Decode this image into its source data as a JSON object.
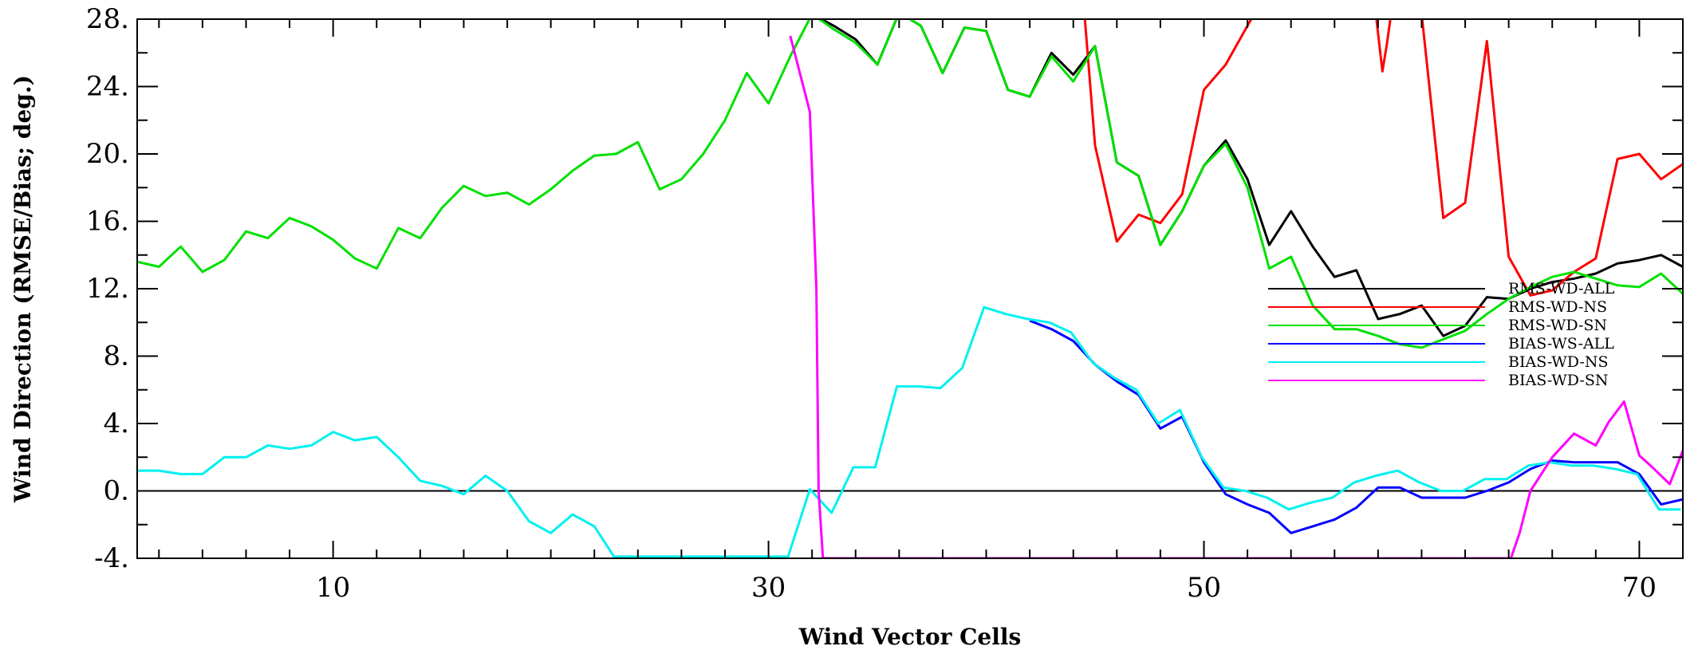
{
  "chart_data": {
    "type": "line",
    "title": "",
    "xlabel": "Wind Vector Cells",
    "ylabel": "Wind Direction (RMSE/Bias; deg.)",
    "xlim": [
      1,
      72
    ],
    "ylim": [
      -4,
      28
    ],
    "xticks": [
      10,
      30,
      50,
      70
    ],
    "xtick_labels": [
      "10",
      "30",
      "50",
      "70"
    ],
    "yticks": [
      -4,
      0,
      4,
      8,
      12,
      16,
      20,
      24,
      28
    ],
    "ytick_labels": [
      "-4.",
      "0.",
      "4.",
      "8.",
      "12.",
      "16.",
      "20.",
      "24.",
      "28."
    ],
    "zero_line": true,
    "grid": false,
    "legend_position": "right",
    "series": [
      {
        "name": "RMS-WD-ALL",
        "color": "#000000",
        "x": [
          32,
          33,
          34,
          35,
          36,
          37,
          38,
          39,
          40,
          41,
          42,
          43,
          44,
          45,
          46,
          47,
          48,
          49,
          50,
          51,
          52,
          53,
          54,
          55,
          56,
          57,
          58,
          59,
          60,
          61,
          62,
          63,
          64,
          65,
          66,
          67,
          68,
          69,
          70,
          71,
          72
        ],
        "y": [
          28.3,
          27.6,
          26.8,
          25.3,
          28.4,
          27.6,
          24.8,
          27.5,
          27.3,
          23.8,
          23.4,
          26.0,
          24.7,
          26.4,
          19.5,
          18.7,
          14.6,
          16.6,
          19.3,
          20.8,
          18.5,
          14.6,
          16.6,
          14.5,
          12.7,
          13.1,
          10.2,
          10.5,
          11.0,
          9.2,
          9.8,
          11.5,
          11.4,
          12.0,
          12.4,
          12.6,
          12.9,
          13.5,
          13.7,
          14.0,
          13.3
        ]
      },
      {
        "name": "RMS-WD-NS",
        "color": "#ff0000",
        "x": [
          44.5,
          45,
          46,
          47,
          48,
          49,
          50,
          51,
          52.3,
          57.9,
          58.2,
          58.4,
          58.6,
          60,
          61,
          62,
          63,
          64,
          65,
          66,
          67,
          68,
          69,
          70,
          71,
          72
        ],
        "y": [
          28.5,
          20.5,
          14.8,
          16.4,
          15.9,
          17.6,
          23.8,
          25.3,
          28.3,
          28.3,
          24.9,
          26.5,
          28.3,
          28.3,
          16.2,
          17.1,
          26.7,
          13.9,
          11.6,
          11.9,
          13.0,
          13.8,
          19.7,
          20.0,
          18.5,
          19.4
        ]
      },
      {
        "name": "RMS-WD-SN",
        "color": "#00e000",
        "x": [
          1,
          2,
          3,
          4,
          5,
          6,
          7,
          8,
          9,
          10,
          11,
          12,
          13,
          14,
          15,
          16,
          17,
          18,
          19,
          20,
          21,
          22,
          23,
          24,
          25,
          26,
          27,
          28,
          29,
          30,
          31,
          32,
          33,
          34,
          35,
          36,
          37,
          38,
          39,
          40,
          41,
          42,
          43,
          44,
          45,
          46,
          47,
          48,
          49,
          50,
          51,
          52,
          53,
          54,
          55,
          56,
          57,
          58,
          59,
          60,
          61,
          62,
          63,
          64,
          65,
          66,
          67,
          68,
          69,
          70,
          71,
          72
        ],
        "y": [
          13.6,
          13.3,
          14.5,
          13.0,
          13.7,
          15.4,
          15.0,
          16.2,
          15.7,
          14.9,
          13.8,
          13.2,
          15.6,
          15.0,
          16.8,
          18.1,
          17.5,
          17.7,
          17.0,
          17.9,
          19.0,
          19.9,
          20.0,
          20.7,
          17.9,
          18.5,
          20.0,
          22.0,
          24.8,
          23.0,
          25.8,
          28.3,
          27.4,
          26.6,
          25.3,
          28.4,
          27.6,
          24.8,
          27.5,
          27.3,
          23.8,
          23.4,
          25.8,
          24.3,
          26.4,
          19.5,
          18.7,
          14.6,
          16.6,
          19.3,
          20.6,
          18.0,
          13.2,
          13.9,
          11.0,
          9.6,
          9.6,
          9.2,
          8.7,
          8.5,
          9.0,
          9.5,
          10.5,
          11.4,
          12.1,
          12.7,
          13.0,
          12.6,
          12.2,
          12.1,
          12.9,
          11.7
        ]
      },
      {
        "name": "BIAS-WS-ALL",
        "color": "#0000ff",
        "x": [
          42,
          43,
          44,
          45,
          46,
          47,
          48,
          49,
          50,
          51,
          52,
          53,
          54,
          55,
          56,
          57,
          58,
          59,
          60,
          61,
          62,
          63,
          64,
          65,
          66,
          67,
          68,
          69,
          70,
          71,
          72
        ],
        "y": [
          10.1,
          9.6,
          8.9,
          7.5,
          6.5,
          5.7,
          3.7,
          4.4,
          1.7,
          -0.2,
          -0.8,
          -1.3,
          -2.5,
          -2.1,
          -1.7,
          -1.0,
          0.2,
          0.2,
          -0.4,
          -0.4,
          -0.4,
          0.0,
          0.5,
          1.3,
          1.8,
          1.7,
          1.7,
          1.7,
          1.0,
          -0.8,
          -0.5
        ]
      },
      {
        "name": "BIAS-WD-NS",
        "color": "#00f0f0",
        "x": [
          1,
          2,
          3,
          4,
          5,
          6,
          7,
          8,
          9,
          10,
          11,
          12,
          13,
          14,
          15,
          16,
          17,
          18,
          19,
          20,
          21,
          22,
          22.9,
          30.9,
          31.9,
          32.9,
          33.9,
          34.9,
          35.9,
          36.9,
          37.9,
          38.9,
          39.9,
          40.9,
          41.9,
          42.9,
          43.9,
          44.9,
          45.9,
          46.9,
          47.9,
          48.9,
          49.9,
          50.9,
          51.9,
          52.9,
          53.9,
          54.9,
          55.9,
          56.9,
          57.9,
          58.9,
          59.9,
          60.9,
          61.9,
          62.9,
          63.9,
          64.9,
          65.9,
          66.9,
          67.9,
          68.9,
          69.9,
          70.9,
          71.9
        ],
        "y": [
          1.2,
          1.2,
          1.0,
          1.0,
          2.0,
          2.0,
          2.7,
          2.5,
          2.7,
          3.5,
          3.0,
          3.2,
          2.0,
          0.6,
          0.3,
          -0.2,
          0.9,
          0.0,
          -1.8,
          -2.5,
          -1.4,
          -2.1,
          -3.9,
          -3.9,
          0.1,
          -1.3,
          1.4,
          1.4,
          6.2,
          6.2,
          6.1,
          7.3,
          10.9,
          10.5,
          10.2,
          10.0,
          9.4,
          7.6,
          6.7,
          6.0,
          4.0,
          4.8,
          2.0,
          0.2,
          0.0,
          -0.4,
          -1.1,
          -0.7,
          -0.4,
          0.5,
          0.9,
          1.2,
          0.5,
          0.0,
          0.0,
          0.7,
          0.7,
          1.5,
          1.7,
          1.5,
          1.5,
          1.3,
          1.0,
          -1.1,
          -1.1
        ]
      },
      {
        "name": "BIAS-WD-SN",
        "color": "#ff00ff",
        "x": [
          31.0,
          31.9,
          32.2,
          32.3,
          32.5,
          64.1,
          64.5,
          65,
          66,
          67,
          68,
          68.6,
          69.3,
          70,
          70.6,
          71.4,
          72
        ],
        "y": [
          27.0,
          22.5,
          12.0,
          0.0,
          -4.0,
          -4.0,
          -2.5,
          0.0,
          2.0,
          3.4,
          2.7,
          4.1,
          5.3,
          2.1,
          1.4,
          0.4,
          2.4
        ]
      }
    ]
  }
}
